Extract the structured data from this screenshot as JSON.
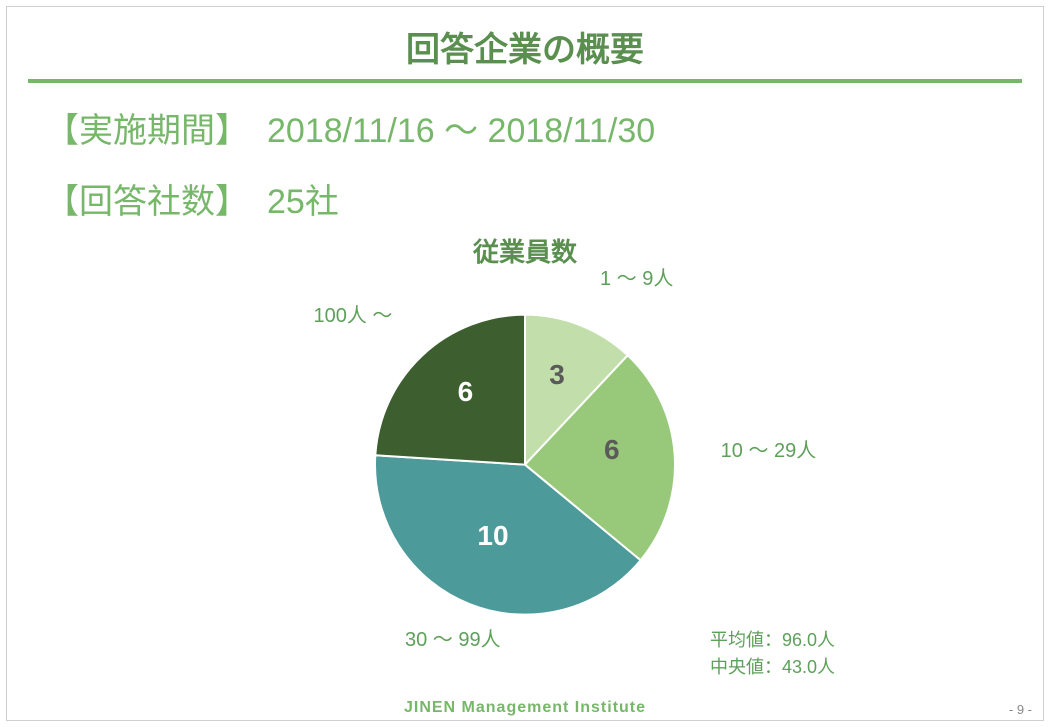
{
  "colors": {
    "accent": "#77b76a",
    "title_text": "#5a8f4f",
    "info_text": "#77b76a",
    "chart_title": "#5a8f4f",
    "stats_text": "#5ea05a",
    "footer_text": "#77b76a",
    "slice_label_light": "#ffffff",
    "slice_label_dark": "#5a5a5a"
  },
  "page_title": "回答企業の概要",
  "info": {
    "period_label": "【実施期間】",
    "period_value": "2018/11/16 〜 2018/11/30",
    "count_label": "【回答社数】",
    "count_value": "25社"
  },
  "chart": {
    "type": "pie",
    "title": "従業員数",
    "radius": 150,
    "start_angle_deg": -90,
    "slices": [
      {
        "label": "1 〜 9人",
        "value": 3,
        "color": "#c2dfab",
        "value_color": "#5a5a5a",
        "label_pos": "right-top"
      },
      {
        "label": "10 〜 29人",
        "value": 6,
        "color": "#98c97a",
        "value_color": "#5a5a5a",
        "label_pos": "right"
      },
      {
        "label": "30 〜 99人",
        "value": 10,
        "color": "#4d9a9a",
        "value_color": "#ffffff",
        "label_pos": "bottom-left"
      },
      {
        "label": "100人 〜",
        "value": 6,
        "color": "#3d5e2e",
        "value_color": "#ffffff",
        "label_pos": "left-top"
      }
    ],
    "stats": {
      "mean_label": "平均値：",
      "mean_value": "96.0人",
      "median_label": "中央値：",
      "median_value": "43.0人"
    }
  },
  "footer": {
    "brand": "JINEN  Management  Institute",
    "page_number": "- 9 -"
  }
}
